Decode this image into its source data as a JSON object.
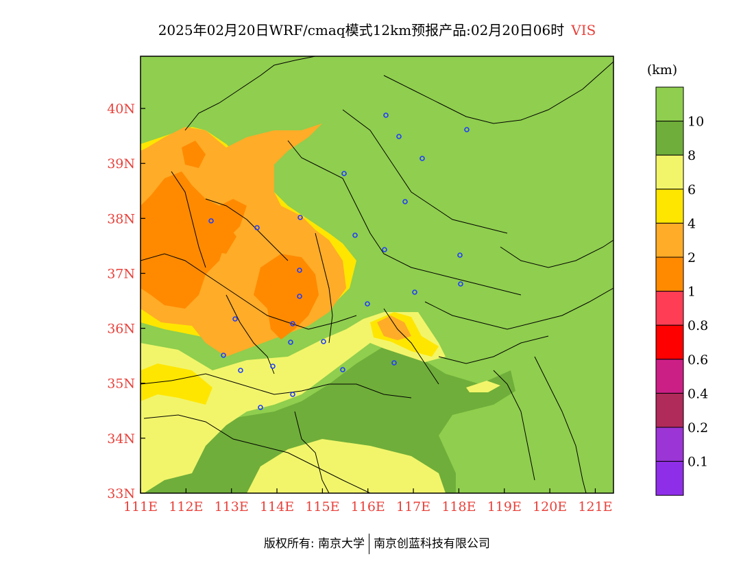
{
  "title": {
    "main": "2025年02月20日WRF/cmaq模式12km预报产品:02月20日06时",
    "variable": "VIS"
  },
  "map": {
    "lon_labels": [
      "111E",
      "112E",
      "113E",
      "114E",
      "115E",
      "116E",
      "117E",
      "118E",
      "119E",
      "120E",
      "121E"
    ],
    "lat_labels": [
      "33N",
      "34N",
      "35N",
      "36N",
      "37N",
      "38N",
      "39N",
      "40N"
    ],
    "lon_range": [
      111,
      121.4
    ],
    "lat_range": [
      33,
      40.95
    ],
    "colors": {
      "vis_ge10": "#8fce4e",
      "vis_8_10": "#6fae3a",
      "vis_6_8": "#f2f56a",
      "vis_4_6": "#ffe600",
      "vis_2_4": "#ffac28",
      "vis_1_2": "#ff8a00",
      "boundary": "#000000",
      "station": "#1e3cff"
    }
  },
  "legend": {
    "unit": "(km)",
    "levels": [
      "10",
      "8",
      "6",
      "4",
      "2",
      "1",
      "0.8",
      "0.6",
      "0.4",
      "0.2",
      "0.1"
    ],
    "colors": [
      "#8fce4e",
      "#6fae3a",
      "#f2f56a",
      "#ffe600",
      "#ffac28",
      "#ff8a00",
      "#ff3d55",
      "#ff0000",
      "#cc1f86",
      "#b02a5a",
      "#9b35d6",
      "#8f2ee8"
    ]
  },
  "footer": {
    "copyright": "版权所有: 南京大学",
    "company": "南京创蓝科技有限公司"
  }
}
